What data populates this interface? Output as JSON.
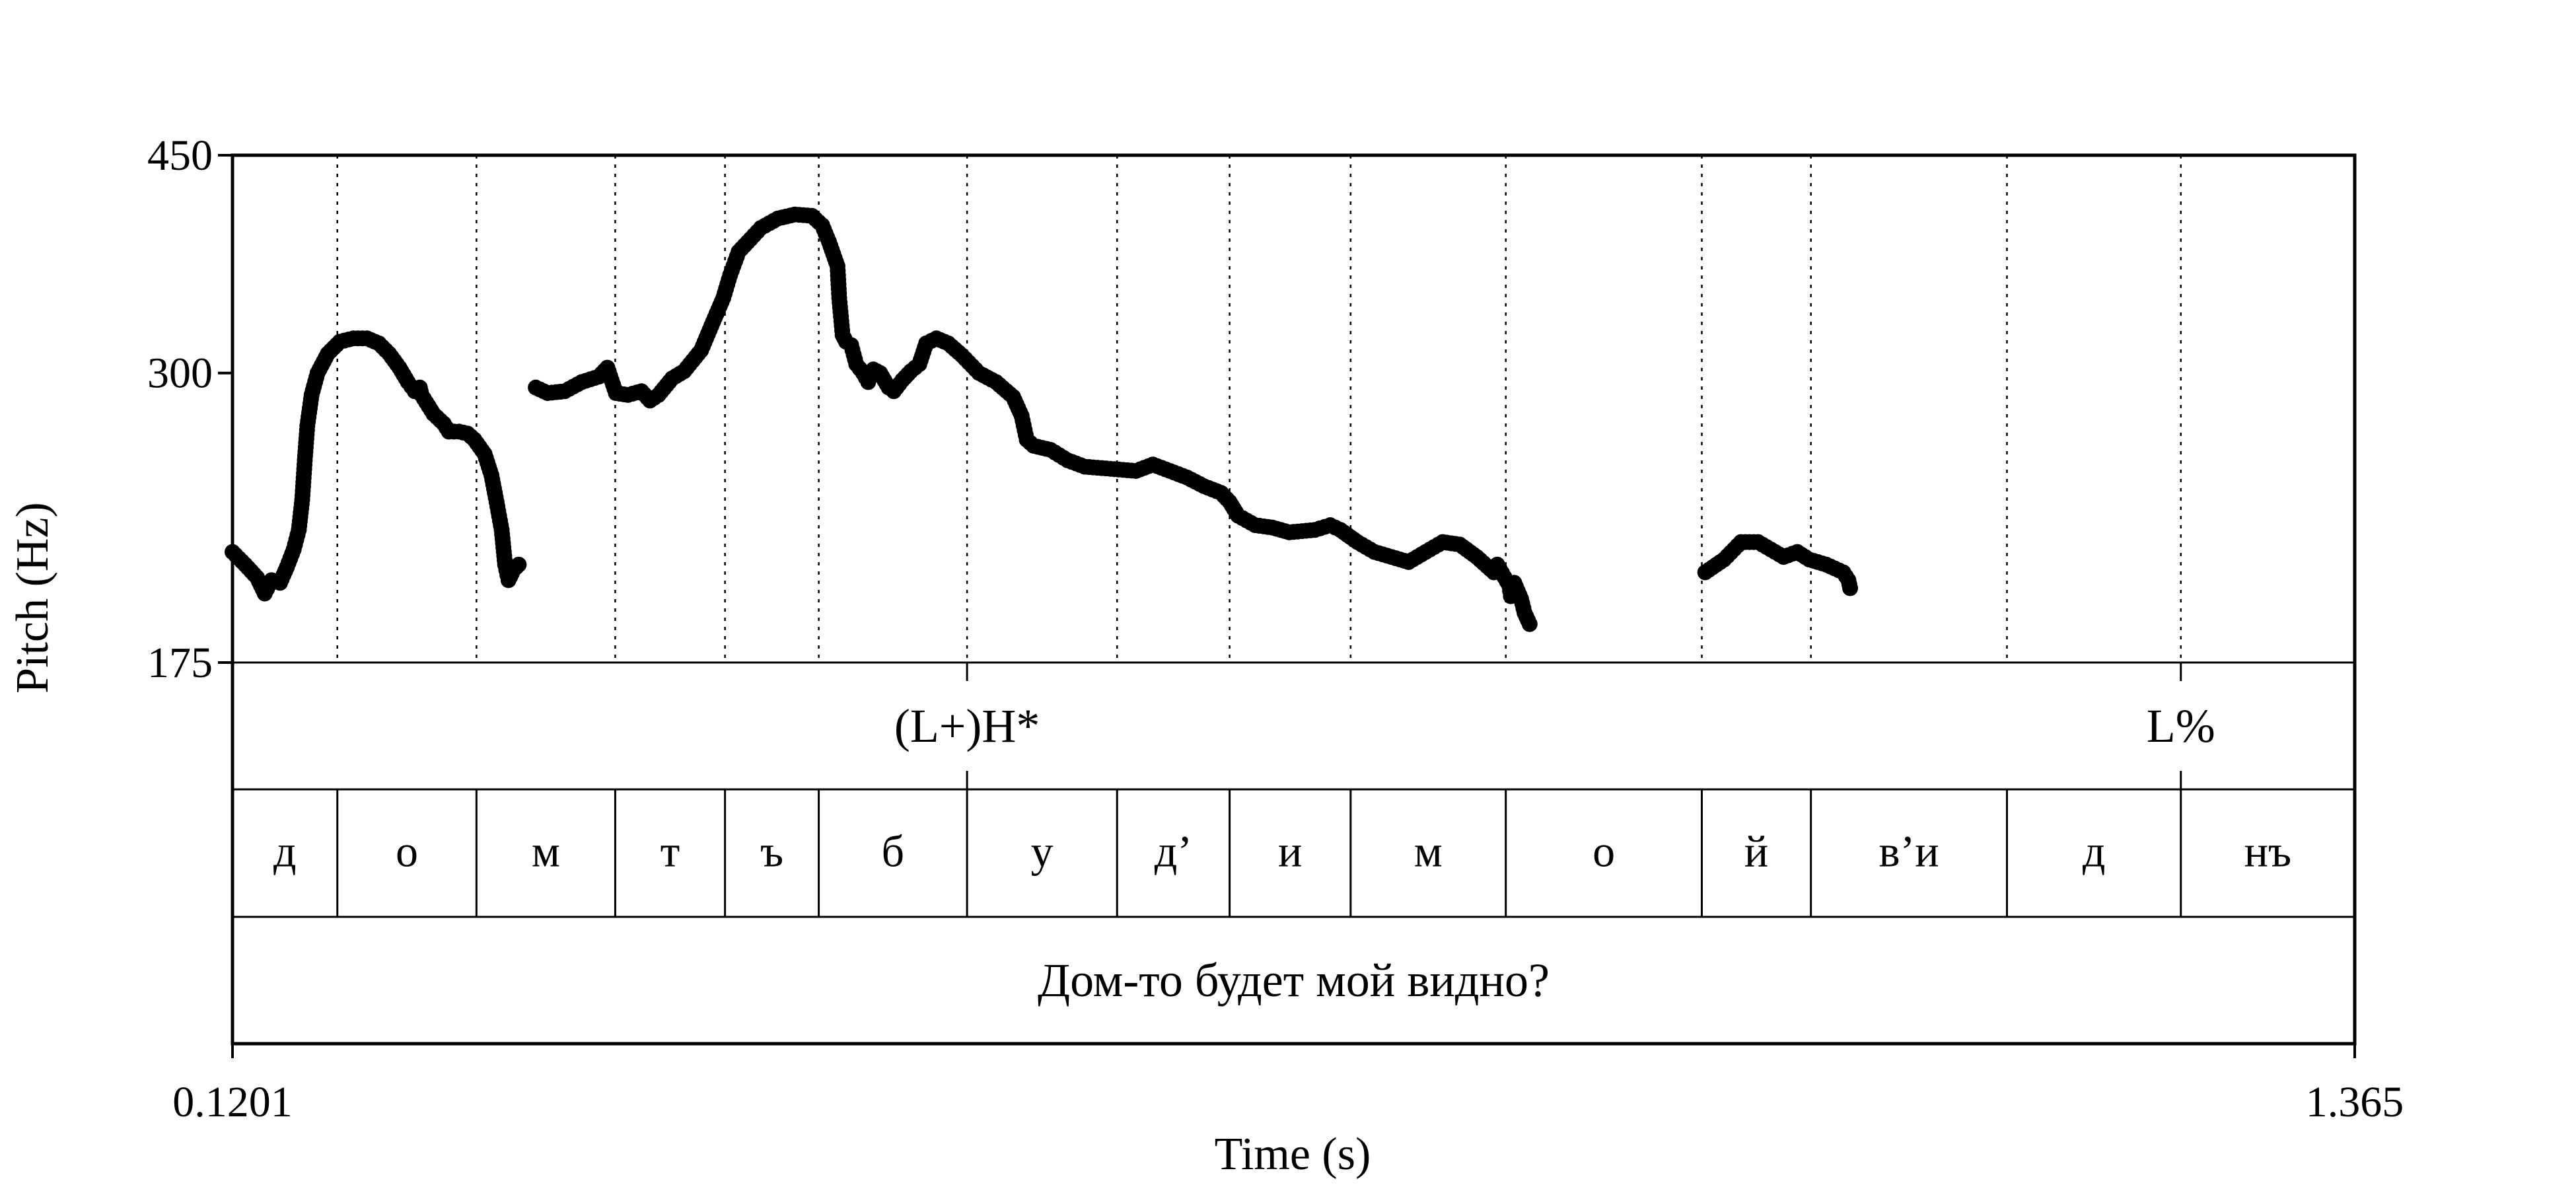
{
  "chart_data": {
    "type": "scatter",
    "xlabel": "Time (s)",
    "ylabel": "Pitch (Hz)",
    "xlim": [
      0.1201,
      1.365
    ],
    "ylim": [
      175,
      450
    ],
    "y_scale": "log",
    "x_tick_labels": [
      "0.1201",
      "1.365"
    ],
    "y_tick_labels": [
      "175",
      "300",
      "450"
    ],
    "y_ticks": [
      175,
      300,
      450
    ],
    "marker_color": "#000000",
    "pitch_segments": [
      [
        [
          0.1201,
          215
        ],
        [
          0.1275,
          210
        ],
        [
          0.1345,
          205
        ],
        [
          0.139,
          199
        ],
        [
          0.143,
          204
        ],
        [
          0.148,
          203
        ],
        [
          0.152,
          209
        ],
        [
          0.156,
          216
        ],
        [
          0.159,
          224
        ],
        [
          0.161,
          237
        ],
        [
          0.1625,
          255
        ],
        [
          0.164,
          272
        ],
        [
          0.1665,
          288
        ],
        [
          0.17,
          300
        ],
        [
          0.176,
          311
        ],
        [
          0.183,
          318
        ],
        [
          0.191,
          320
        ],
        [
          0.199,
          320
        ],
        [
          0.206,
          317
        ],
        [
          0.212,
          311
        ],
        [
          0.218,
          303
        ],
        [
          0.223,
          295
        ],
        [
          0.227,
          290
        ],
        [
          0.23,
          292
        ],
        [
          0.231,
          288
        ],
        [
          0.238,
          278
        ],
        [
          0.244,
          273
        ],
        [
          0.247,
          269
        ],
        [
          0.253,
          269
        ],
        [
          0.258,
          268
        ],
        [
          0.262,
          265
        ],
        [
          0.268,
          258
        ],
        [
          0.272,
          248
        ],
        [
          0.275,
          236
        ],
        [
          0.278,
          224
        ],
        [
          0.28,
          210
        ],
        [
          0.282,
          204
        ],
        [
          0.285,
          208
        ],
        [
          0.288,
          210
        ]
      ],
      [
        [
          0.298,
          292
        ],
        [
          0.305,
          289
        ],
        [
          0.315,
          290
        ],
        [
          0.325,
          295
        ],
        [
          0.335,
          298
        ],
        [
          0.34,
          303
        ],
        [
          0.345,
          289
        ],
        [
          0.352,
          288
        ],
        [
          0.36,
          290
        ],
        [
          0.365,
          285
        ],
        [
          0.37,
          288
        ],
        [
          0.378,
          297
        ],
        [
          0.385,
          301
        ],
        [
          0.395,
          313
        ],
        [
          0.402,
          330
        ],
        [
          0.408,
          345
        ],
        [
          0.412,
          360
        ],
        [
          0.417,
          376
        ],
        [
          0.424,
          385
        ],
        [
          0.43,
          393
        ],
        [
          0.44,
          400
        ],
        [
          0.45,
          403
        ],
        [
          0.46,
          402
        ],
        [
          0.466,
          395
        ],
        [
          0.47,
          383
        ],
        [
          0.475,
          366
        ],
        [
          0.476,
          345
        ],
        [
          0.478,
          322
        ],
        [
          0.48,
          318
        ],
        [
          0.483,
          316
        ],
        [
          0.486,
          305
        ],
        [
          0.49,
          300
        ],
        [
          0.493,
          295
        ],
        [
          0.496,
          302
        ],
        [
          0.5,
          300
        ],
        [
          0.505,
          292
        ],
        [
          0.508,
          290
        ],
        [
          0.513,
          296
        ],
        [
          0.518,
          301
        ],
        [
          0.523,
          305
        ],
        [
          0.527,
          317
        ],
        [
          0.533,
          320
        ],
        [
          0.54,
          317
        ],
        [
          0.548,
          310
        ],
        [
          0.558,
          300
        ],
        [
          0.568,
          295
        ],
        [
          0.578,
          287
        ],
        [
          0.583,
          277
        ],
        [
          0.586,
          265
        ],
        [
          0.59,
          262
        ],
        [
          0.6,
          260
        ],
        [
          0.61,
          255
        ],
        [
          0.62,
          252
        ],
        [
          0.635,
          251
        ],
        [
          0.65,
          250
        ],
        [
          0.66,
          253
        ],
        [
          0.67,
          250
        ],
        [
          0.68,
          247
        ],
        [
          0.69,
          243
        ],
        [
          0.7,
          240
        ],
        [
          0.705,
          236
        ],
        [
          0.71,
          230
        ],
        [
          0.72,
          226
        ],
        [
          0.73,
          225
        ],
        [
          0.74,
          223
        ],
        [
          0.755,
          224
        ],
        [
          0.764,
          226
        ],
        [
          0.77,
          224
        ],
        [
          0.78,
          219
        ],
        [
          0.79,
          215
        ],
        [
          0.8,
          213
        ],
        [
          0.81,
          211
        ],
        [
          0.82,
          215
        ],
        [
          0.83,
          219
        ],
        [
          0.84,
          218
        ],
        [
          0.85,
          213
        ],
        [
          0.86,
          207
        ],
        [
          0.862,
          210
        ],
        [
          0.869,
          202
        ],
        [
          0.87,
          198
        ],
        [
          0.872,
          203
        ],
        [
          0.876,
          197
        ],
        [
          0.878,
          192
        ],
        [
          0.881,
          188
        ]
      ],
      [
        [
          0.984,
          207
        ],
        [
          0.995,
          212
        ],
        [
          1.005,
          219
        ],
        [
          1.015,
          219
        ],
        [
          1.025,
          215
        ],
        [
          1.03,
          213
        ],
        [
          1.038,
          215
        ],
        [
          1.045,
          212
        ],
        [
          1.055,
          210
        ],
        [
          1.065,
          207
        ],
        [
          1.068,
          204
        ],
        [
          1.069,
          201
        ]
      ]
    ],
    "tiers": [
      {
        "name": "tones",
        "points": [
          {
            "time": 0.551,
            "label": "(L+)H*"
          },
          {
            "time": 1.263,
            "label": "L%"
          }
        ]
      },
      {
        "name": "segments",
        "intervals": [
          {
            "start": 0.1201,
            "end": 0.1816,
            "label": "д"
          },
          {
            "start": 0.1816,
            "end": 0.2632,
            "label": "о"
          },
          {
            "start": 0.2632,
            "end": 0.3446,
            "label": "м"
          },
          {
            "start": 0.3446,
            "end": 0.409,
            "label": "т"
          },
          {
            "start": 0.409,
            "end": 0.464,
            "label": "ъ"
          },
          {
            "start": 0.464,
            "end": 0.551,
            "label": "б"
          },
          {
            "start": 0.551,
            "end": 0.639,
            "label": "у"
          },
          {
            "start": 0.639,
            "end": 0.705,
            "label": "д’"
          },
          {
            "start": 0.705,
            "end": 0.776,
            "label": "и"
          },
          {
            "start": 0.776,
            "end": 0.867,
            "label": "м"
          },
          {
            "start": 0.867,
            "end": 0.982,
            "label": "о"
          },
          {
            "start": 0.982,
            "end": 1.046,
            "label": "й"
          },
          {
            "start": 1.046,
            "end": 1.161,
            "label": "в’и"
          },
          {
            "start": 1.161,
            "end": 1.263,
            "label": "д"
          },
          {
            "start": 1.263,
            "end": 1.365,
            "label": "нъ"
          }
        ]
      },
      {
        "name": "sentence",
        "intervals": [
          {
            "start": 0.1201,
            "end": 1.365,
            "label": "Дом-то будет мой видно?"
          }
        ]
      }
    ]
  }
}
